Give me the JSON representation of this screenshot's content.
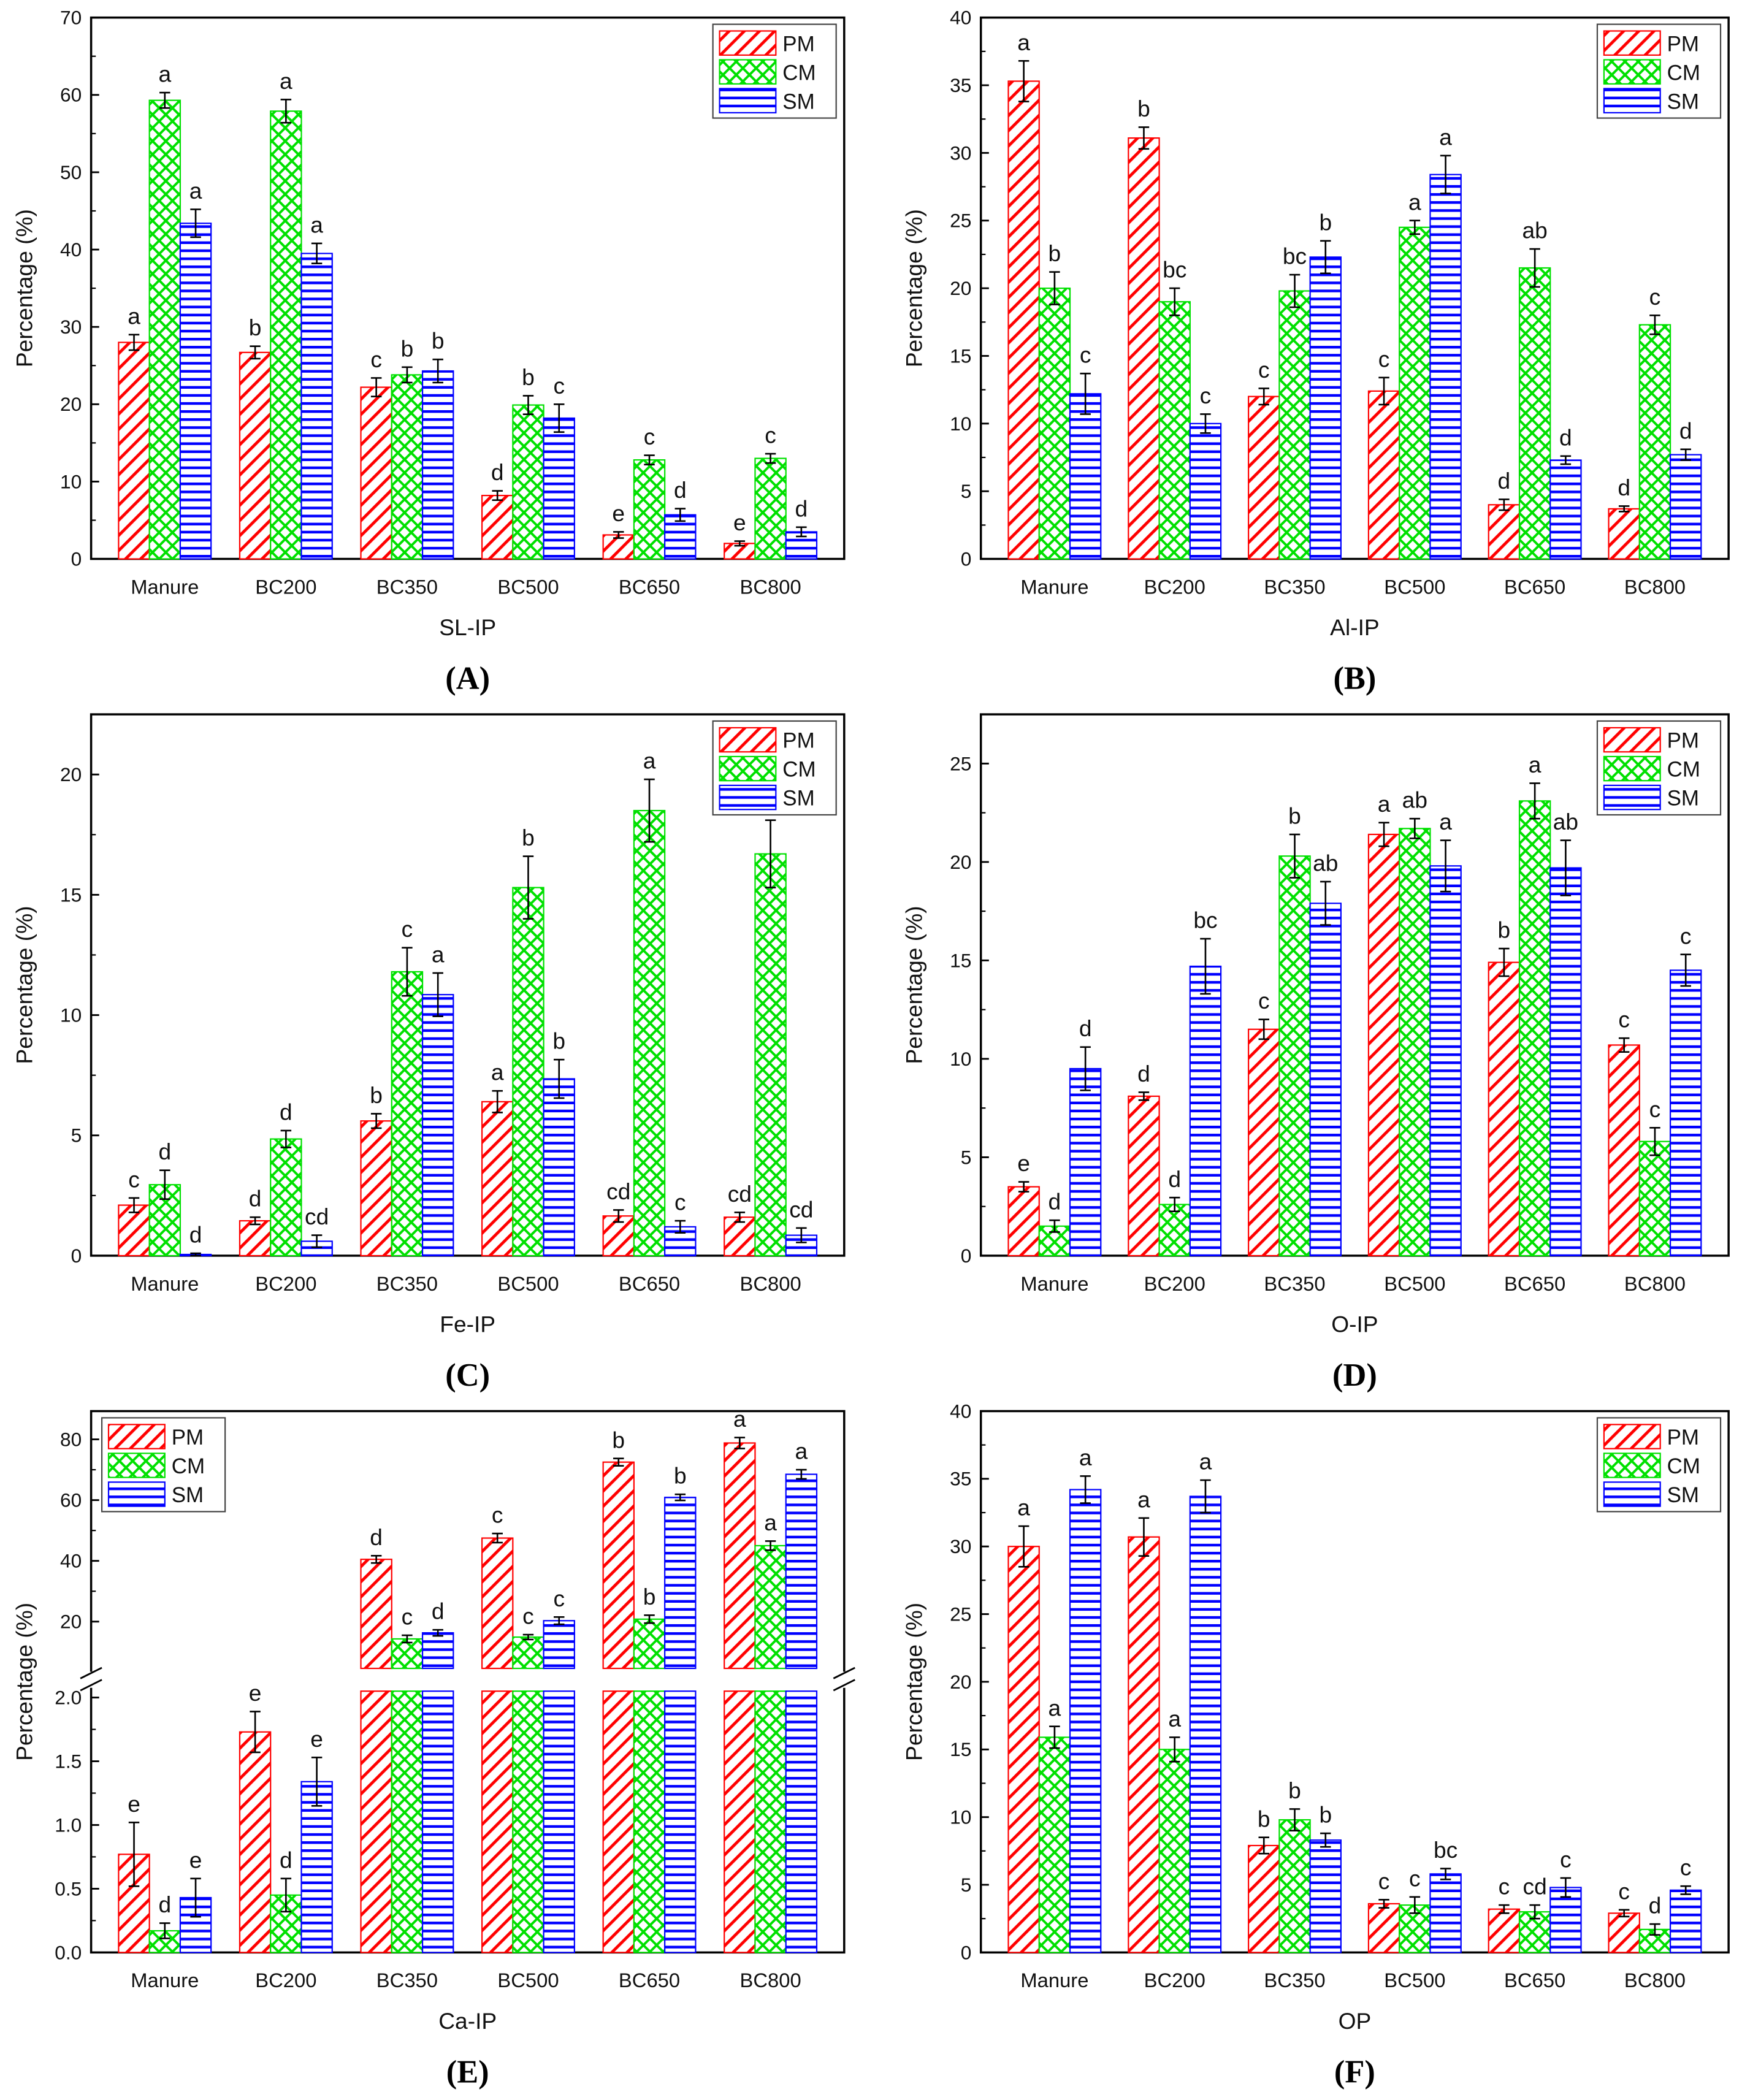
{
  "chart_data": [
    {
      "type": "bar",
      "panel_label": "(A)",
      "xlabel": "SL-IP",
      "ylabel": "Percentage (%)",
      "ylim": [
        0,
        70
      ],
      "yticks": [
        0,
        10,
        20,
        30,
        40,
        50,
        60,
        70
      ],
      "legend_position": "top-right",
      "categories": [
        "Manure",
        "BC200",
        "BC350",
        "BC500",
        "BC650",
        "BC800"
      ],
      "series": [
        {
          "name": "PM",
          "values": [
            28.0,
            26.7,
            22.2,
            8.2,
            3.1,
            2.0
          ],
          "errors": [
            1.0,
            0.8,
            1.2,
            0.6,
            0.4,
            0.3
          ],
          "letters": [
            "a",
            "b",
            "c",
            "d",
            "e",
            "e"
          ]
        },
        {
          "name": "CM",
          "values": [
            59.3,
            57.9,
            23.8,
            19.9,
            12.8,
            13.0
          ],
          "errors": [
            1.0,
            1.5,
            1.0,
            1.2,
            0.6,
            0.6
          ],
          "letters": [
            "a",
            "a",
            "b",
            "b",
            "c",
            "c"
          ]
        },
        {
          "name": "SM",
          "values": [
            43.4,
            39.5,
            24.3,
            18.2,
            5.7,
            3.5
          ],
          "errors": [
            1.8,
            1.3,
            1.5,
            1.8,
            0.8,
            0.6
          ],
          "letters": [
            "a",
            "a",
            "b",
            "c",
            "d",
            "d"
          ]
        }
      ]
    },
    {
      "type": "bar",
      "panel_label": "(B)",
      "xlabel": "Al-IP",
      "ylabel": "Percentage (%)",
      "ylim": [
        0,
        40
      ],
      "yticks": [
        0,
        5,
        10,
        15,
        20,
        25,
        30,
        35,
        40
      ],
      "legend_position": "top-right",
      "categories": [
        "Manure",
        "BC200",
        "BC350",
        "BC500",
        "BC650",
        "BC800"
      ],
      "series": [
        {
          "name": "PM",
          "values": [
            35.3,
            31.1,
            12.0,
            12.4,
            4.0,
            3.7
          ],
          "errors": [
            1.5,
            0.8,
            0.6,
            1.0,
            0.4,
            0.2
          ],
          "letters": [
            "a",
            "b",
            "c",
            "c",
            "d",
            "d"
          ]
        },
        {
          "name": "CM",
          "values": [
            20.0,
            19.0,
            19.8,
            24.5,
            21.5,
            17.3
          ],
          "errors": [
            1.2,
            1.0,
            1.2,
            0.5,
            1.4,
            0.7
          ],
          "letters": [
            "b",
            "bc",
            "bc",
            "a",
            "ab",
            "c"
          ]
        },
        {
          "name": "SM",
          "values": [
            12.2,
            10.0,
            22.3,
            28.4,
            7.3,
            7.7
          ],
          "errors": [
            1.5,
            0.7,
            1.2,
            1.4,
            0.3,
            0.4
          ],
          "letters": [
            "c",
            "c",
            "b",
            "a",
            "d",
            "d"
          ]
        }
      ]
    },
    {
      "type": "bar",
      "panel_label": "(C)",
      "xlabel": "Fe-IP",
      "ylabel": "Percentage (%)",
      "ylim": [
        0,
        22.5
      ],
      "yticks": [
        0,
        5,
        10,
        15,
        20
      ],
      "legend_position": "top-right",
      "categories": [
        "Manure",
        "BC200",
        "BC350",
        "BC500",
        "BC650",
        "BC800"
      ],
      "series": [
        {
          "name": "PM",
          "values": [
            2.1,
            1.45,
            5.6,
            6.4,
            1.65,
            1.6
          ],
          "errors": [
            0.3,
            0.15,
            0.3,
            0.45,
            0.25,
            0.2
          ],
          "letters": [
            "c",
            "d",
            "b",
            "a",
            "cd",
            "cd"
          ]
        },
        {
          "name": "CM",
          "values": [
            2.95,
            4.85,
            11.8,
            15.3,
            18.5,
            16.7
          ],
          "errors": [
            0.6,
            0.35,
            1.0,
            1.3,
            1.3,
            1.4
          ],
          "letters": [
            "d",
            "d",
            "c",
            "b",
            "a",
            "ab"
          ]
        },
        {
          "name": "SM",
          "values": [
            0.05,
            0.6,
            10.85,
            7.35,
            1.2,
            0.85
          ],
          "errors": [
            0.05,
            0.25,
            0.9,
            0.8,
            0.25,
            0.3
          ],
          "letters": [
            "d",
            "cd",
            "a",
            "b",
            "c",
            "cd"
          ]
        }
      ]
    },
    {
      "type": "bar",
      "panel_label": "(D)",
      "xlabel": "O-IP",
      "ylabel": "Percentage (%)",
      "ylim": [
        0,
        27.5
      ],
      "yticks": [
        0,
        5,
        10,
        15,
        20,
        25
      ],
      "legend_position": "top-right",
      "categories": [
        "Manure",
        "BC200",
        "BC350",
        "BC500",
        "BC650",
        "BC800"
      ],
      "series": [
        {
          "name": "PM",
          "values": [
            3.5,
            8.1,
            11.5,
            21.4,
            14.9,
            10.7
          ],
          "errors": [
            0.25,
            0.2,
            0.5,
            0.6,
            0.7,
            0.35
          ],
          "letters": [
            "e",
            "d",
            "c",
            "a",
            "b",
            "c"
          ]
        },
        {
          "name": "CM",
          "values": [
            1.5,
            2.6,
            20.3,
            21.7,
            23.1,
            5.8
          ],
          "errors": [
            0.3,
            0.35,
            1.1,
            0.5,
            0.9,
            0.7
          ],
          "letters": [
            "d",
            "d",
            "b",
            "ab",
            "a",
            "c"
          ]
        },
        {
          "name": "SM",
          "values": [
            9.5,
            14.7,
            17.9,
            19.8,
            19.7,
            14.5
          ],
          "errors": [
            1.1,
            1.4,
            1.1,
            1.3,
            1.4,
            0.8
          ],
          "letters": [
            "d",
            "bc",
            "ab",
            "a",
            "ab",
            "c"
          ]
        }
      ]
    },
    {
      "type": "bar",
      "panel_label": "(E)",
      "xlabel": "Ca-IP",
      "ylabel": "Percentage (%)",
      "broken_axis": true,
      "ylim_lower": [
        0,
        2.05
      ],
      "yticks_lower": [
        0.0,
        0.5,
        1.0,
        1.5,
        2.0
      ],
      "ylim_upper": [
        4.6,
        89.3
      ],
      "yticks_upper": [
        20,
        40,
        60,
        80
      ],
      "legend_position": "top-left",
      "categories": [
        "Manure",
        "BC200",
        "BC350",
        "BC500",
        "BC650",
        "BC800"
      ],
      "series": [
        {
          "name": "PM",
          "values": [
            0.77,
            1.73,
            40.5,
            47.5,
            72.5,
            78.8
          ],
          "errors": [
            0.25,
            0.16,
            1.2,
            1.5,
            1.2,
            1.8
          ],
          "letters": [
            "e",
            "e",
            "d",
            "c",
            "b",
            "a"
          ]
        },
        {
          "name": "CM",
          "values": [
            0.17,
            0.45,
            14.3,
            14.9,
            20.8,
            45.0
          ],
          "errors": [
            0.06,
            0.13,
            1.2,
            0.8,
            1.3,
            1.5
          ],
          "letters": [
            "d",
            "d",
            "c",
            "c",
            "b",
            "a"
          ]
        },
        {
          "name": "SM",
          "values": [
            0.43,
            1.34,
            16.3,
            20.3,
            60.9,
            68.5
          ],
          "errors": [
            0.15,
            0.19,
            1.0,
            1.2,
            1.0,
            1.5
          ],
          "letters": [
            "e",
            "e",
            "d",
            "c",
            "b",
            "a"
          ]
        }
      ]
    },
    {
      "type": "bar",
      "panel_label": "(F)",
      "xlabel": "OP",
      "ylabel": "Percentage (%)",
      "ylim": [
        0,
        40
      ],
      "yticks": [
        0,
        5,
        10,
        15,
        20,
        25,
        30,
        35,
        40
      ],
      "legend_position": "top-right",
      "categories": [
        "Manure",
        "BC200",
        "BC350",
        "BC500",
        "BC650",
        "BC800"
      ],
      "series": [
        {
          "name": "PM",
          "values": [
            30.0,
            30.7,
            7.9,
            3.6,
            3.2,
            2.9
          ],
          "errors": [
            1.5,
            1.4,
            0.6,
            0.3,
            0.3,
            0.25
          ],
          "letters": [
            "a",
            "a",
            "b",
            "c",
            "c",
            "c"
          ]
        },
        {
          "name": "CM",
          "values": [
            15.9,
            15.0,
            9.8,
            3.5,
            3.0,
            1.7
          ],
          "errors": [
            0.8,
            0.9,
            0.8,
            0.6,
            0.5,
            0.4
          ],
          "letters": [
            "a",
            "a",
            "b",
            "c",
            "cd",
            "d"
          ]
        },
        {
          "name": "SM",
          "values": [
            34.2,
            33.7,
            8.3,
            5.8,
            4.8,
            4.6
          ],
          "errors": [
            1.0,
            1.2,
            0.5,
            0.4,
            0.7,
            0.3
          ],
          "letters": [
            "a",
            "a",
            "b",
            "bc",
            "c",
            "c"
          ]
        }
      ]
    }
  ],
  "colors": {
    "PM": "#ff0000",
    "CM": "#00e000",
    "SM": "#0000ff"
  }
}
